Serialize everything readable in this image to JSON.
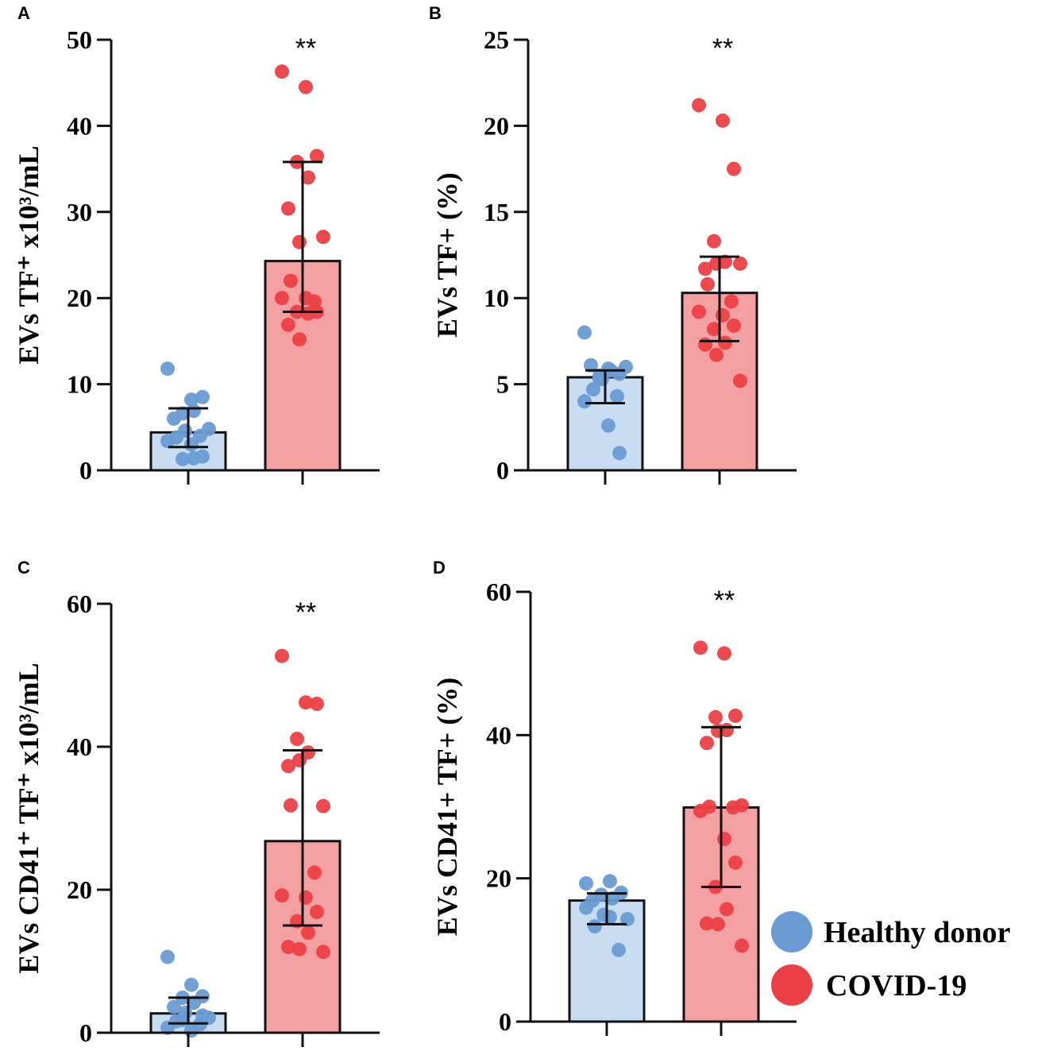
{
  "colors": {
    "healthy": "#6a9bd2",
    "healthy_bar": "#c9ddf2",
    "covid": "#ec4046",
    "covid_bar": "#f4a0a2"
  },
  "legend": [
    {
      "label": "Healthy donor",
      "color": "#6a9bd2"
    },
    {
      "label": "COVID-19",
      "color": "#ec4046"
    }
  ],
  "chart_data": [
    {
      "panel": "A",
      "type": "bar",
      "ylabel": "EVs TF⁺ x10³/mL",
      "ylim": [
        0,
        50
      ],
      "yticks": [
        0,
        10,
        20,
        30,
        40,
        50
      ],
      "significance": "**",
      "series": [
        {
          "name": "Healthy donor",
          "mean": 4.4,
          "err": [
            2.7,
            7.2
          ],
          "points": [
            11.8,
            8.2,
            8.5,
            6.6,
            6.9,
            6.0,
            4.6,
            4.8,
            3.8,
            4.0,
            3.4,
            3.0,
            1.6,
            1.3,
            1.4
          ]
        },
        {
          "name": "COVID-19",
          "mean": 24.3,
          "err": [
            18.4,
            35.8
          ],
          "points": [
            46.3,
            44.5,
            36.5,
            35.8,
            34.0,
            30.4,
            26.5,
            27.1,
            22.0,
            19.6,
            20.0,
            20.0,
            18.4,
            18.4,
            18.2,
            16.9,
            15.2
          ]
        }
      ]
    },
    {
      "panel": "B",
      "type": "bar",
      "ylabel": "EVs TF+ (%)",
      "ylim": [
        0,
        25
      ],
      "yticks": [
        0,
        5,
        10,
        15,
        20,
        25
      ],
      "significance": "**",
      "series": [
        {
          "name": "Healthy donor",
          "mean": 5.4,
          "err": [
            3.9,
            5.8
          ],
          "points": [
            8.0,
            5.9,
            5.6,
            5.5,
            5.8,
            6.1,
            5.3,
            6.0,
            4.7,
            4.3,
            4.0,
            2.6,
            1.0,
            5.3
          ]
        },
        {
          "name": "COVID-19",
          "mean": 10.3,
          "err": [
            7.5,
            12.4
          ],
          "points": [
            21.2,
            20.3,
            17.5,
            13.3,
            12.1,
            11.7,
            12.0,
            12.0,
            10.8,
            9.8,
            9.2,
            9.0,
            8.4,
            8.2,
            7.4,
            7.3,
            6.7,
            5.2
          ]
        }
      ]
    },
    {
      "panel": "C",
      "type": "bar",
      "ylabel": "EVs CD41⁺ TF⁺ x10³/mL",
      "ylim": [
        0,
        60
      ],
      "yticks": [
        0,
        20,
        40,
        60
      ],
      "significance": "**",
      "series": [
        {
          "name": "Healthy donor",
          "mean": 2.7,
          "err": [
            1.3,
            4.9
          ],
          "points": [
            10.6,
            6.7,
            5.1,
            4.9,
            4.2,
            3.6,
            2.8,
            2.1,
            1.6,
            1.2,
            0.7,
            0.3,
            2.4,
            1.8
          ]
        },
        {
          "name": "COVID-19",
          "mean": 26.8,
          "err": [
            15.0,
            39.5
          ],
          "points": [
            52.7,
            46.2,
            46.0,
            41.1,
            39.2,
            37.3,
            38.1,
            31.7,
            31.8,
            22.4,
            19.2,
            18.9,
            16.9,
            15.6,
            14.0,
            12.0,
            11.7,
            11.3
          ]
        }
      ]
    },
    {
      "panel": "D",
      "type": "bar",
      "ylabel": "EVs CD41+ TF+ (%)",
      "ylim": [
        0,
        60
      ],
      "yticks": [
        0,
        20,
        40,
        60
      ],
      "significance": "**",
      "series": [
        {
          "name": "Healthy donor",
          "mean": 16.9,
          "err": [
            13.6,
            17.9
          ],
          "points": [
            19.3,
            19.6,
            18.0,
            17.7,
            17.2,
            16.9,
            14.9,
            14.3,
            13.3,
            10.0,
            15.9,
            14.6
          ]
        },
        {
          "name": "COVID-19",
          "mean": 29.9,
          "err": [
            18.8,
            41.1
          ],
          "points": [
            52.2,
            51.4,
            42.7,
            42.5,
            40.7,
            38.9,
            40.6,
            30.2,
            30.0,
            29.9,
            29.4,
            25.5,
            22.2,
            18.8,
            15.7,
            13.7,
            13.6,
            10.6
          ]
        }
      ]
    }
  ]
}
